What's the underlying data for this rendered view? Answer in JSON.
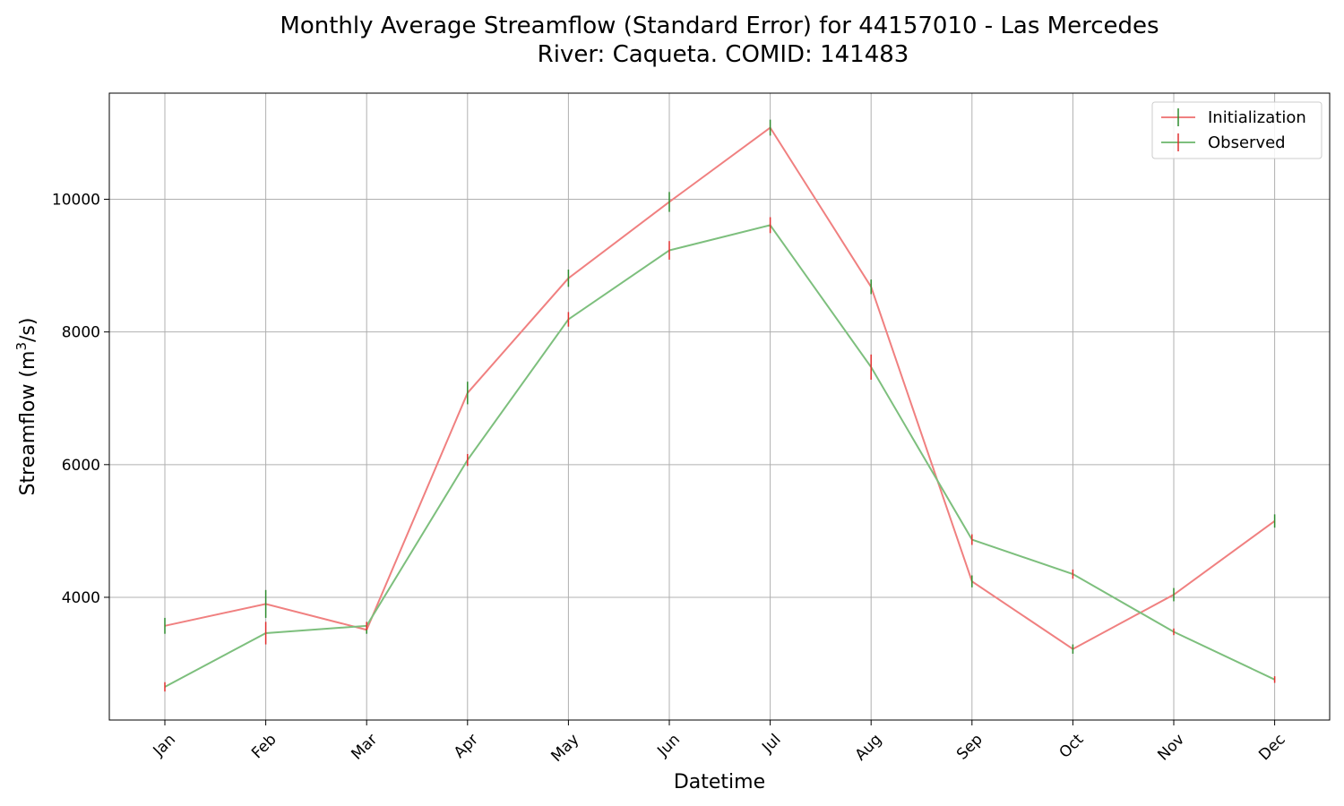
{
  "chart_data": {
    "type": "line",
    "title": "Monthly Average Streamflow (Standard Error) for 44157010 - Las Mercedes",
    "subtitle": "River: Caqueta. COMID: 141483",
    "xlabel": "Datetime",
    "ylabel_main": "Streamflow (m",
    "ylabel_sup": "3",
    "ylabel_tail": "/s)",
    "categories": [
      "Jan",
      "Feb",
      "Mar",
      "Apr",
      "May",
      "Jun",
      "Jul",
      "Aug",
      "Sep",
      "Oct",
      "Nov",
      "Dec"
    ],
    "ylim": [
      2150,
      11600
    ],
    "yticks": [
      4000,
      6000,
      8000,
      10000
    ],
    "grid": true,
    "legend_position": "top-right",
    "series": [
      {
        "name": "Initialization",
        "color": "#f08080",
        "errbar_color": "#2e8b2e",
        "values": [
          3570,
          3900,
          3510,
          7080,
          8810,
          9960,
          11080,
          8680,
          4240,
          3220,
          4040,
          5150
        ],
        "errors": [
          120,
          210,
          60,
          170,
          130,
          150,
          120,
          110,
          90,
          70,
          100,
          100
        ]
      },
      {
        "name": "Observed",
        "color": "#7dbf7d",
        "errbar_color": "#e03030",
        "values": [
          2650,
          3460,
          3570,
          6070,
          8190,
          9230,
          9610,
          7470,
          4870,
          4350,
          3480,
          2760
        ],
        "errors": [
          70,
          170,
          60,
          90,
          110,
          140,
          120,
          190,
          80,
          70,
          50,
          50
        ]
      }
    ]
  }
}
